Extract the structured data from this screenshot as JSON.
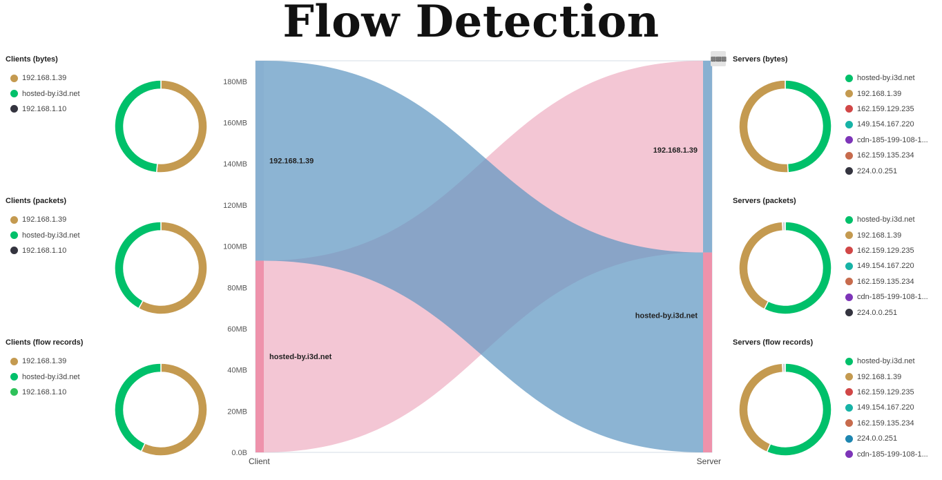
{
  "page_title": "Flow Detection",
  "options_icon": "grid-dots-icon",
  "colors": {
    "green": "#00c06a",
    "tan": "#c49a50",
    "dark": "#34343f",
    "red": "#d14747",
    "teal": "#17b3a6",
    "purple": "#7d35b8",
    "rust": "#c76b4d",
    "blue": "#1e86b0",
    "lightgreen": "#2fc15a",
    "sankey_blue": "#78a7cb",
    "sankey_pink": "#f1bfcf",
    "sankey_pink_node": "#ee92ab",
    "sankey_blue_node": "#88b0d1"
  },
  "left_panels": [
    {
      "title": "Clients (bytes)",
      "legend": [
        {
          "label": "192.168.1.39",
          "color": "#c49a50"
        },
        {
          "label": "hosted-by.i3d.net",
          "color": "#00c06a"
        },
        {
          "label": "192.168.1.10",
          "color": "#34343f"
        }
      ],
      "slices": [
        {
          "label": "192.168.1.39",
          "value": 0.515,
          "color": "#c49a50"
        },
        {
          "label": "hosted-by.i3d.net",
          "value": 0.485,
          "color": "#00c06a"
        }
      ]
    },
    {
      "title": "Clients (packets)",
      "legend": [
        {
          "label": "192.168.1.39",
          "color": "#c49a50"
        },
        {
          "label": "hosted-by.i3d.net",
          "color": "#00c06a"
        },
        {
          "label": "192.168.1.10",
          "color": "#34343f"
        }
      ],
      "slices": [
        {
          "label": "192.168.1.39",
          "value": 0.58,
          "color": "#c49a50"
        },
        {
          "label": "hosted-by.i3d.net",
          "value": 0.42,
          "color": "#00c06a"
        }
      ]
    },
    {
      "title": "Clients (flow records)",
      "legend": [
        {
          "label": "192.168.1.39",
          "color": "#c49a50"
        },
        {
          "label": "hosted-by.i3d.net",
          "color": "#00c06a"
        },
        {
          "label": "192.168.1.10",
          "color": "#2fc15a"
        }
      ],
      "slices": [
        {
          "label": "192.168.1.39",
          "value": 0.57,
          "color": "#c49a50"
        },
        {
          "label": "hosted-by.i3d.net",
          "value": 0.43,
          "color": "#00c06a"
        }
      ]
    }
  ],
  "right_panels": [
    {
      "title": "Servers (bytes)",
      "legend": [
        {
          "label": "hosted-by.i3d.net",
          "color": "#00c06a"
        },
        {
          "label": "192.168.1.39",
          "color": "#c49a50"
        },
        {
          "label": "162.159.129.235",
          "color": "#d14747"
        },
        {
          "label": "149.154.167.220",
          "color": "#17b3a6"
        },
        {
          "label": "cdn-185-199-108-1...",
          "color": "#7d35b8"
        },
        {
          "label": "162.159.135.234",
          "color": "#c76b4d"
        },
        {
          "label": "224.0.0.251",
          "color": "#34343f"
        }
      ],
      "slices": [
        {
          "label": "hosted-by.i3d.net",
          "value": 0.49,
          "color": "#00c06a"
        },
        {
          "label": "192.168.1.39",
          "value": 0.51,
          "color": "#c49a50"
        }
      ]
    },
    {
      "title": "Servers (packets)",
      "legend": [
        {
          "label": "hosted-by.i3d.net",
          "color": "#00c06a"
        },
        {
          "label": "192.168.1.39",
          "color": "#c49a50"
        },
        {
          "label": "162.159.129.235",
          "color": "#d14747"
        },
        {
          "label": "149.154.167.220",
          "color": "#17b3a6"
        },
        {
          "label": "162.159.135.234",
          "color": "#c76b4d"
        },
        {
          "label": "cdn-185-199-108-1...",
          "color": "#7d35b8"
        },
        {
          "label": "224.0.0.251",
          "color": "#34343f"
        }
      ],
      "slices": [
        {
          "label": "hosted-by.i3d.net",
          "value": 0.575,
          "color": "#00c06a"
        },
        {
          "label": "192.168.1.39",
          "value": 0.415,
          "color": "#c49a50"
        },
        {
          "label": "others",
          "value": 0.01,
          "color": "#cfd3d6"
        }
      ]
    },
    {
      "title": "Servers (flow records)",
      "legend": [
        {
          "label": "hosted-by.i3d.net",
          "color": "#00c06a"
        },
        {
          "label": "192.168.1.39",
          "color": "#c49a50"
        },
        {
          "label": "162.159.129.235",
          "color": "#d14747"
        },
        {
          "label": "149.154.167.220",
          "color": "#17b3a6"
        },
        {
          "label": "162.159.135.234",
          "color": "#c76b4d"
        },
        {
          "label": "224.0.0.251",
          "color": "#1e86b0"
        },
        {
          "label": "cdn-185-199-108-1...",
          "color": "#7d35b8"
        }
      ],
      "slices": [
        {
          "label": "hosted-by.i3d.net",
          "value": 0.565,
          "color": "#00c06a"
        },
        {
          "label": "192.168.1.39",
          "value": 0.425,
          "color": "#c49a50"
        },
        {
          "label": "others",
          "value": 0.01,
          "color": "#cfd3d6"
        }
      ]
    }
  ],
  "chart_data": {
    "type": "sankey",
    "unit": "MB",
    "ylim": [
      0,
      190
    ],
    "y_ticks": [
      "0.0B",
      "20MB",
      "40MB",
      "60MB",
      "80MB",
      "100MB",
      "120MB",
      "140MB",
      "160MB",
      "180MB"
    ],
    "y_tick_values": [
      0,
      20,
      40,
      60,
      80,
      100,
      120,
      140,
      160,
      180
    ],
    "x_labels": [
      "Client",
      "Server"
    ],
    "client_nodes": [
      {
        "label": "192.168.1.39",
        "from": 93,
        "to": 190
      },
      {
        "label": "hosted-by.i3d.net",
        "from": 0,
        "to": 93
      }
    ],
    "server_nodes": [
      {
        "label": "192.168.1.39",
        "from": 97,
        "to": 190
      },
      {
        "label": "hosted-by.i3d.net",
        "from": 0,
        "to": 97
      }
    ],
    "flows": [
      {
        "from": "192.168.1.39",
        "to": "hosted-by.i3d.net",
        "value": 97
      },
      {
        "from": "hosted-by.i3d.net",
        "to": "192.168.1.39",
        "value": 93
      }
    ]
  }
}
